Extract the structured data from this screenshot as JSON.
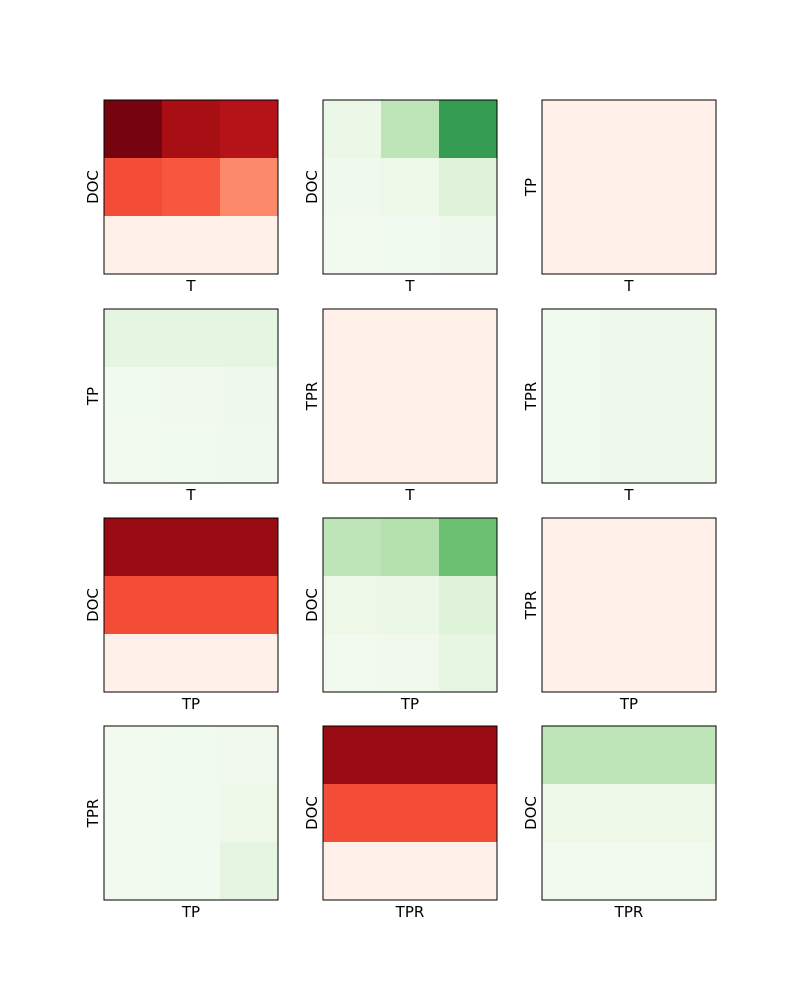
{
  "chart_data": [
    {
      "type": "heatmap",
      "xlabel": "T",
      "ylabel": "DOC",
      "colormap": "reds",
      "z": [
        [
          0.97,
          0.87,
          0.82
        ],
        [
          0.58,
          0.55,
          0.4
        ],
        [
          0.03,
          0.03,
          0.03
        ]
      ]
    },
    {
      "type": "heatmap",
      "xlabel": "T",
      "ylabel": "DOC",
      "colormap": "greens",
      "z": [
        [
          0.08,
          0.28,
          0.68
        ],
        [
          0.05,
          0.07,
          0.15
        ],
        [
          0.03,
          0.04,
          0.06
        ]
      ]
    },
    {
      "type": "heatmap",
      "xlabel": "T",
      "ylabel": "TP",
      "colormap": "reds",
      "z": [
        [
          0.03,
          0.03,
          0.03
        ],
        [
          0.03,
          0.03,
          0.03
        ],
        [
          0.03,
          0.03,
          0.03
        ]
      ]
    },
    {
      "type": "heatmap",
      "xlabel": "T",
      "ylabel": "TP",
      "colormap": "greens",
      "z": [
        [
          0.12,
          0.12,
          0.12
        ],
        [
          0.04,
          0.045,
          0.06
        ],
        [
          0.025,
          0.04,
          0.055
        ]
      ]
    },
    {
      "type": "heatmap",
      "xlabel": "T",
      "ylabel": "TPR",
      "colormap": "reds",
      "z": [
        [
          0.03,
          0.03,
          0.03
        ],
        [
          0.03,
          0.03,
          0.03
        ],
        [
          0.03,
          0.03,
          0.03
        ]
      ]
    },
    {
      "type": "heatmap",
      "xlabel": "T",
      "ylabel": "TPR",
      "colormap": "greens",
      "z": [
        [
          0.04,
          0.06,
          0.06
        ],
        [
          0.04,
          0.06,
          0.06
        ],
        [
          0.04,
          0.06,
          0.06
        ]
      ]
    },
    {
      "type": "heatmap",
      "xlabel": "TP",
      "ylabel": "DOC",
      "colormap": "reds",
      "z": [
        [
          0.9,
          0.9,
          0.9
        ],
        [
          0.58,
          0.58,
          0.58
        ],
        [
          0.03,
          0.03,
          0.03
        ]
      ]
    },
    {
      "type": "heatmap",
      "xlabel": "TP",
      "ylabel": "DOC",
      "colormap": "greens",
      "z": [
        [
          0.28,
          0.31,
          0.52
        ],
        [
          0.07,
          0.08,
          0.15
        ],
        [
          0.035,
          0.045,
          0.11
        ]
      ]
    },
    {
      "type": "heatmap",
      "xlabel": "TP",
      "ylabel": "TPR",
      "colormap": "reds",
      "z": [
        [
          0.03,
          0.03,
          0.03
        ],
        [
          0.03,
          0.03,
          0.03
        ],
        [
          0.03,
          0.03,
          0.03
        ]
      ]
    },
    {
      "type": "heatmap",
      "xlabel": "TP",
      "ylabel": "TPR",
      "colormap": "greens",
      "z": [
        [
          0.035,
          0.04,
          0.045
        ],
        [
          0.035,
          0.04,
          0.07
        ],
        [
          0.035,
          0.04,
          0.12
        ]
      ]
    },
    {
      "type": "heatmap",
      "xlabel": "TPR",
      "ylabel": "DOC",
      "colormap": "reds",
      "z": [
        [
          0.9,
          0.9,
          0.9
        ],
        [
          0.58,
          0.58,
          0.58
        ],
        [
          0.03,
          0.03,
          0.03
        ]
      ]
    },
    {
      "type": "heatmap",
      "xlabel": "TPR",
      "ylabel": "DOC",
      "colormap": "greens",
      "z": [
        [
          0.28,
          0.28,
          0.28
        ],
        [
          0.07,
          0.07,
          0.07
        ],
        [
          0.035,
          0.035,
          0.035
        ]
      ]
    }
  ],
  "colormaps": {
    "reds": [
      "#fff5f0",
      "#fee0d2",
      "#fcbba1",
      "#fc9272",
      "#fb6a4a",
      "#ef3b2c",
      "#cb181d",
      "#a50f15",
      "#67000d"
    ],
    "greens": [
      "#f7fcf5",
      "#e5f5e0",
      "#c7e9c0",
      "#a1d99b",
      "#74c476",
      "#41ab5d",
      "#238b45",
      "#006d2c",
      "#00441b"
    ]
  },
  "colors": {
    "frame": "#000000",
    "text": "#000000",
    "background": "#ffffff"
  }
}
